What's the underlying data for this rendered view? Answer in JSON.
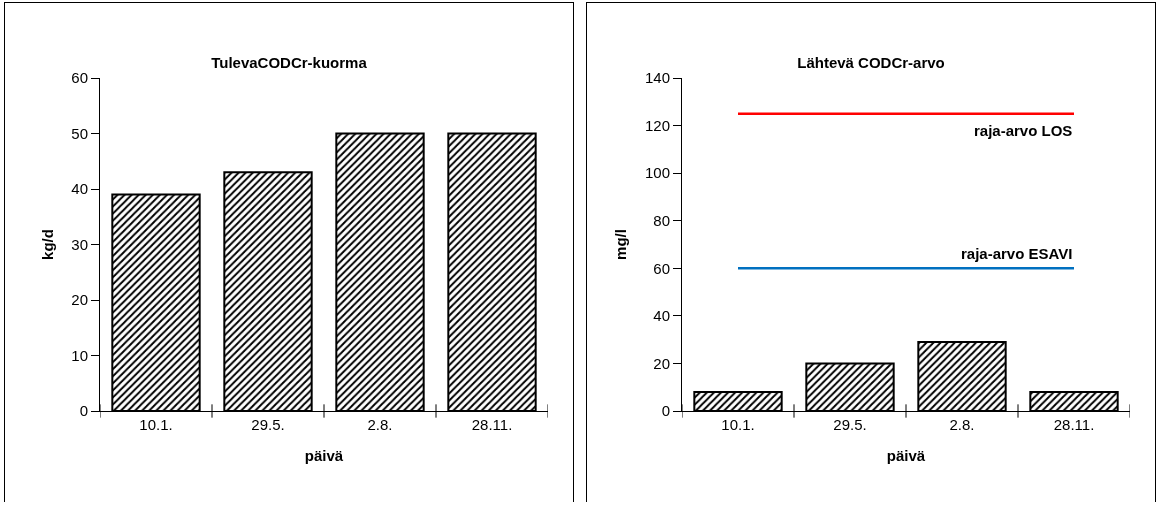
{
  "chart_data": [
    {
      "type": "bar",
      "title": "TulevaCODCr-kuorma",
      "xlabel": "päivä",
      "ylabel": "kg/d",
      "categories": [
        "10.1.",
        "29.5.",
        "2.8.",
        "28.11."
      ],
      "values": [
        39,
        43,
        50,
        50
      ],
      "color": "#000000",
      "ylim": [
        0,
        60
      ],
      "yticks": [
        0,
        10,
        20,
        30,
        40,
        50,
        60
      ],
      "grid": false
    },
    {
      "type": "bar",
      "title": "Lähtevä CODCr-arvo",
      "xlabel": "päivä",
      "ylabel": "mg/l",
      "categories": [
        "10.1.",
        "29.5.",
        "2.8.",
        "28.11."
      ],
      "values": [
        8,
        20,
        29,
        8
      ],
      "color": "#000000",
      "ylim": [
        0,
        140
      ],
      "yticks": [
        0,
        20,
        40,
        60,
        80,
        100,
        120,
        140
      ],
      "grid": false,
      "ref_lines": [
        {
          "axis": "y",
          "value": 125,
          "label": "raja-arvo LOS",
          "color": "#ff0000"
        },
        {
          "axis": "y",
          "value": 60,
          "label": "raja-arvo ESAVI",
          "color": "#0070c0"
        }
      ]
    }
  ]
}
